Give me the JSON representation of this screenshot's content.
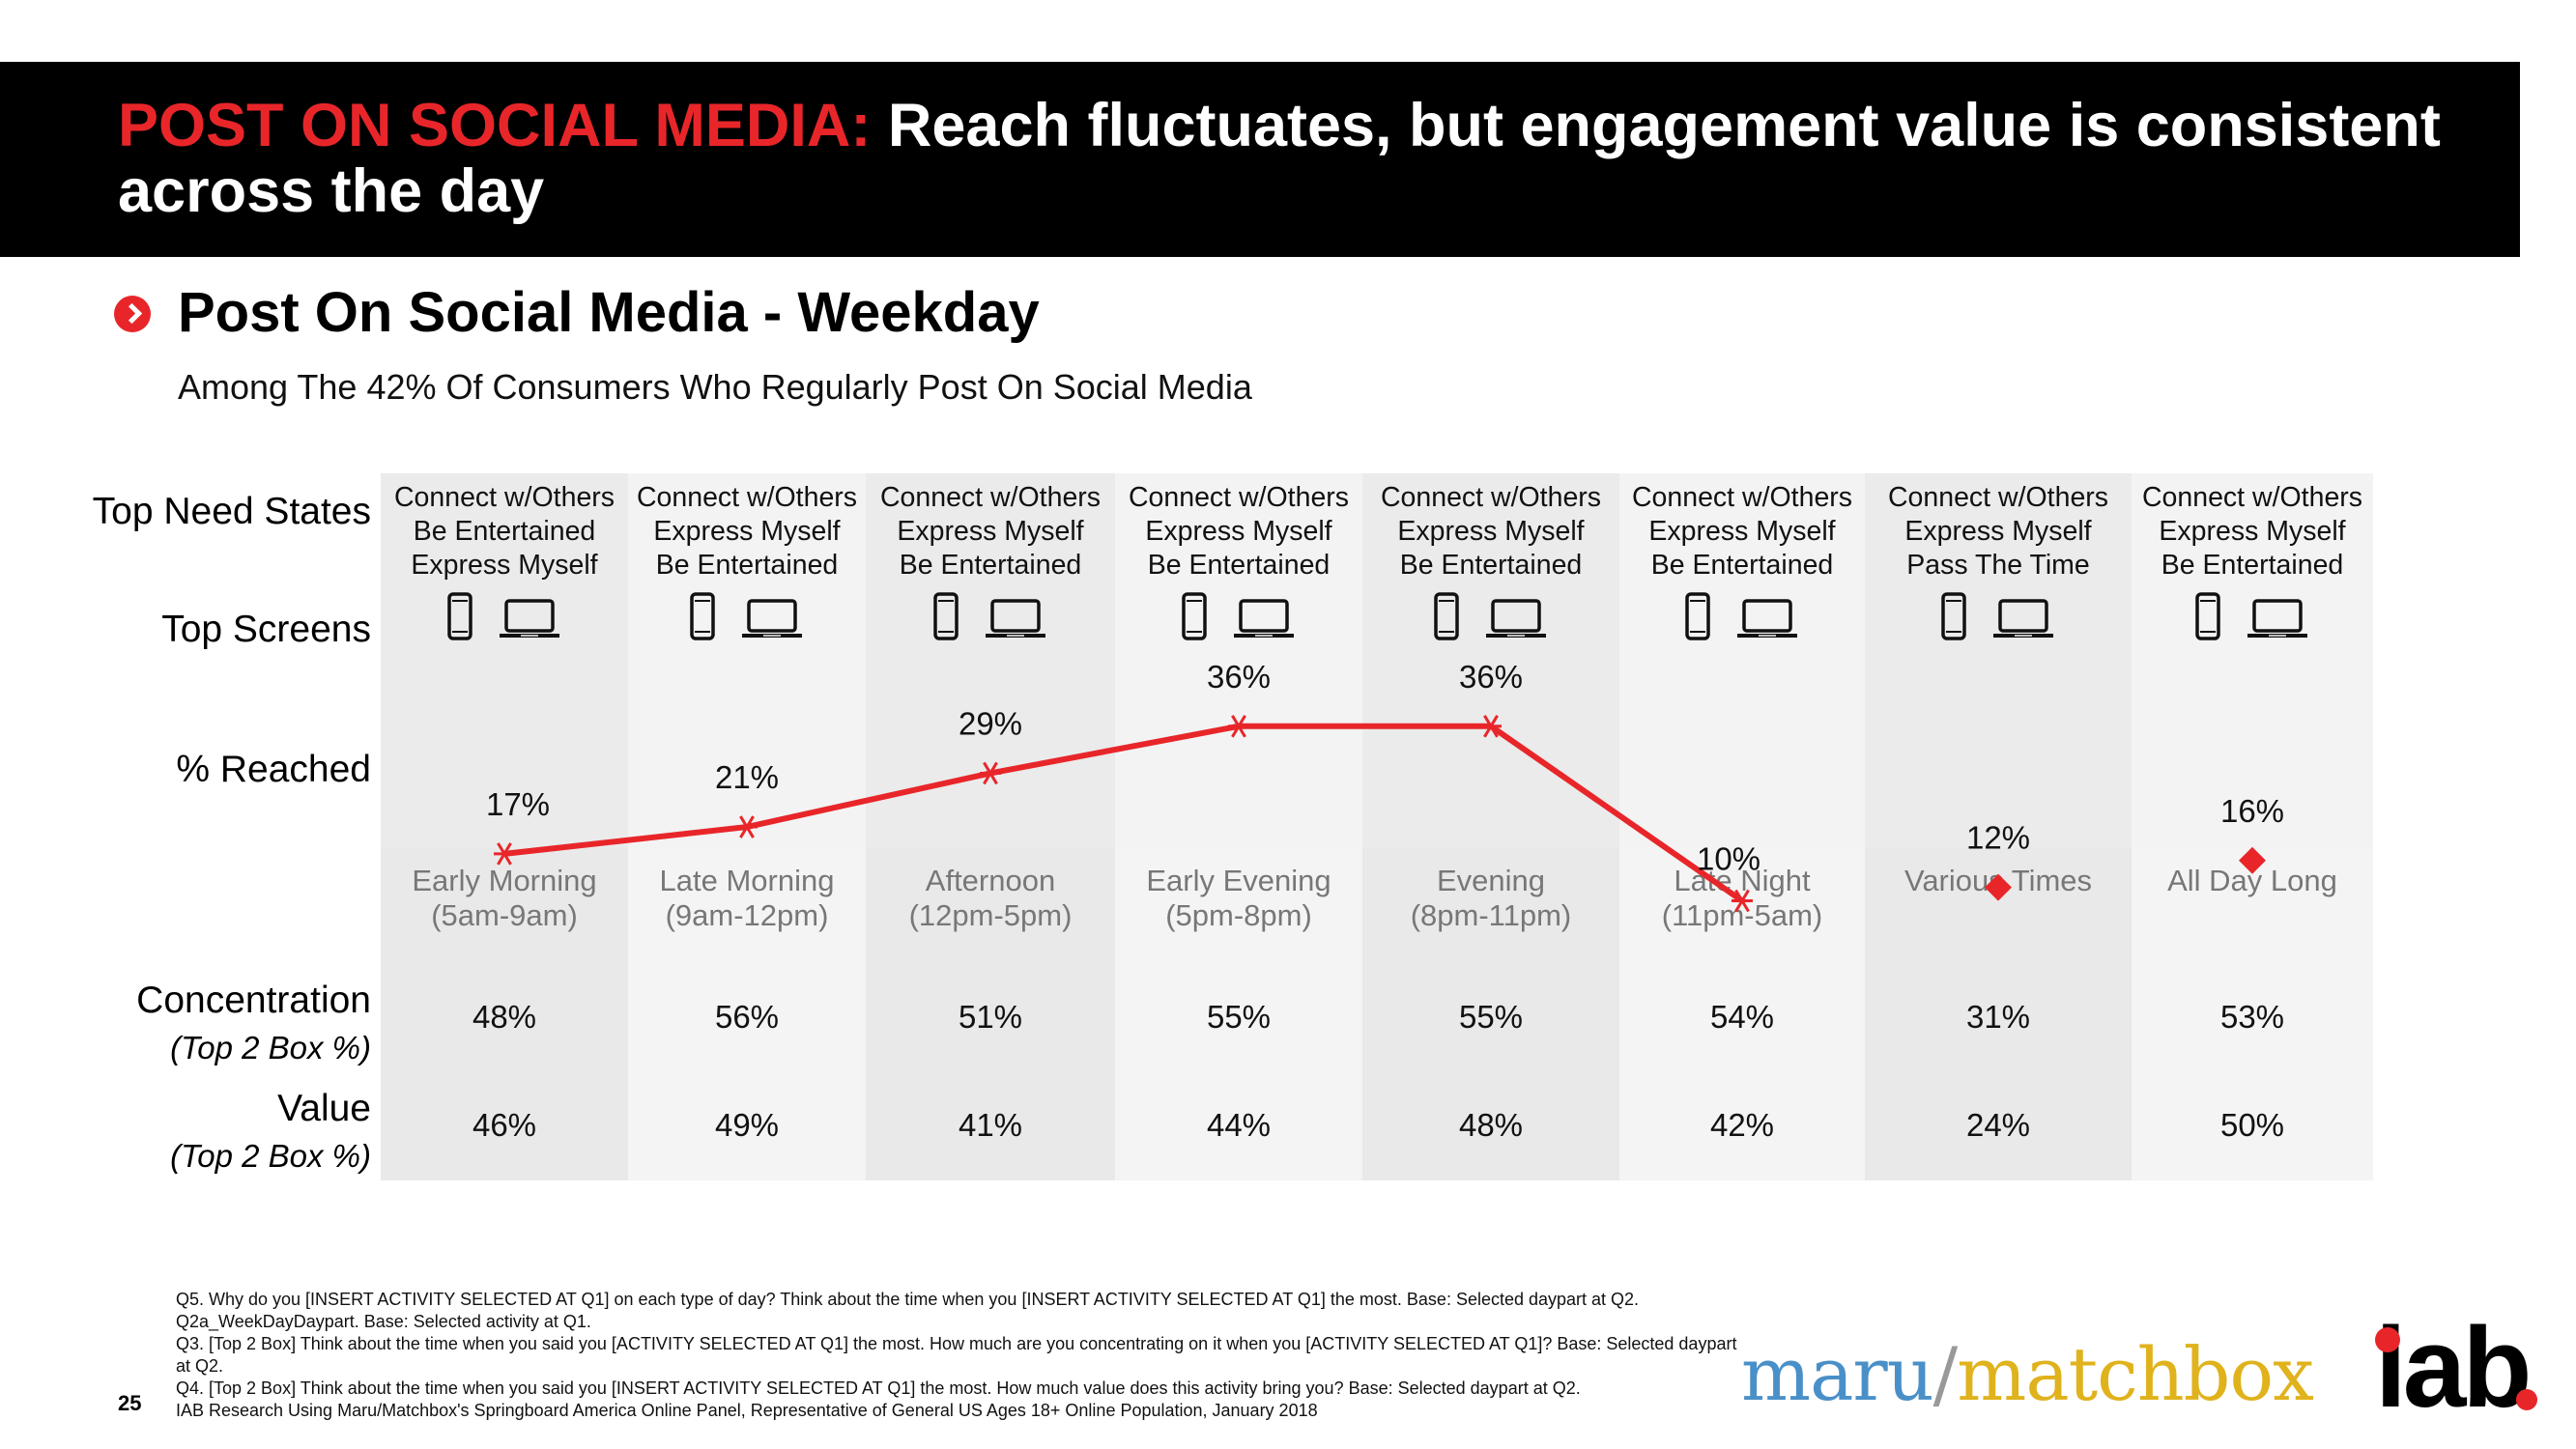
{
  "slide": {
    "title_accent": "POST ON SOCIAL MEDIA:",
    "title_rest": " Reach fluctuates, but engagement value is consistent across the day",
    "section_title": "Post On Social Media - Weekday",
    "subtitle": "Among The 42% Of Consumers Who Regularly Post On Social Media",
    "page_number": "25"
  },
  "row_labels": {
    "need_states": "Top Need States",
    "screens": "Top Screens",
    "reached": "% Reached",
    "concentration": "Concentration",
    "concentration_sub": "(Top 2 Box %)",
    "value": "Value",
    "value_sub": "(Top 2 Box %)"
  },
  "columns": [
    {
      "daypart": "Early Morning",
      "daypart_time": "(5am-9am)",
      "need_states": [
        "Connect w/Others",
        "Be Entertained",
        "Express Myself"
      ],
      "reached_label": "17%",
      "concentration": "48%",
      "value": "46%"
    },
    {
      "daypart": "Late Morning",
      "daypart_time": "(9am-12pm)",
      "need_states": [
        "Connect w/Others",
        "Express Myself",
        "Be Entertained"
      ],
      "reached_label": "21%",
      "concentration": "56%",
      "value": "49%"
    },
    {
      "daypart": "Afternoon",
      "daypart_time": "(12pm-5pm)",
      "need_states": [
        "Connect w/Others",
        "Express Myself",
        "Be Entertained"
      ],
      "reached_label": "29%",
      "concentration": "51%",
      "value": "41%"
    },
    {
      "daypart": "Early Evening",
      "daypart_time": "(5pm-8pm)",
      "need_states": [
        "Connect w/Others",
        "Express Myself",
        "Be Entertained"
      ],
      "reached_label": "36%",
      "concentration": "55%",
      "value": "44%"
    },
    {
      "daypart": "Evening",
      "daypart_time": "(8pm-11pm)",
      "need_states": [
        "Connect w/Others",
        "Express Myself",
        "Be Entertained"
      ],
      "reached_label": "36%",
      "concentration": "55%",
      "value": "48%"
    },
    {
      "daypart": "Late Night",
      "daypart_time": "(11pm-5am)",
      "need_states": [
        "Connect w/Others",
        "Express Myself",
        "Be Entertained"
      ],
      "reached_label": "10%",
      "concentration": "54%",
      "value": "42%"
    },
    {
      "daypart": "Various Times",
      "daypart_time": "",
      "need_states": [
        "Connect w/Others",
        "Express Myself",
        "Pass The Time"
      ],
      "reached_label": "12%",
      "concentration": "31%",
      "value": "24%"
    },
    {
      "daypart": "All Day Long",
      "daypart_time": "",
      "need_states": [
        "Connect w/Others",
        "Express Myself",
        "Be Entertained"
      ],
      "reached_label": "16%",
      "concentration": "53%",
      "value": "50%"
    }
  ],
  "icons": [
    "smartphone-icon",
    "laptop-icon"
  ],
  "chart_data": {
    "type": "line",
    "title": "Post On Social Media - Weekday",
    "categories": [
      "Early Morning",
      "Late Morning",
      "Afternoon",
      "Early Evening",
      "Evening",
      "Late Night",
      "Various Times",
      "All Day Long"
    ],
    "series": [
      {
        "values": [
          17,
          21,
          29,
          36,
          36,
          10,
          null,
          null
        ],
        "marker": "asterisk",
        "color": "#e8262a"
      },
      {
        "values": [
          null,
          null,
          null,
          null,
          null,
          null,
          12,
          16
        ],
        "marker": "diamond",
        "color": "#e8262a"
      }
    ],
    "ylabel": "% Reached",
    "ylim": [
      0,
      40
    ]
  },
  "footnotes": [
    "Q5. Why do you [INSERT ACTIVITY SELECTED AT Q1] on each type of day? Think about the time when you [INSERT ACTIVITY SELECTED AT Q1] the most. Base: Selected daypart at Q2.",
    "Q2a_WeekDayDaypart. Base: Selected activity at Q1.",
    "Q3. [Top 2 Box] Think about the time when you said you [ACTIVITY SELECTED AT Q1] the most.  How much are you concentrating on it when you [ACTIVITY SELECTED AT Q1]? Base: Selected daypart at Q2.",
    "Q4. [Top 2 Box] Think about the time when you said you [INSERT ACTIVITY SELECTED AT Q1] the most.  How much value does this activity bring you? Base: Selected daypart at Q2.",
    "IAB Research Using Maru/Matchbox's Springboard America Online Panel, Representative of General US Ages 18+ Online Population, January 2018"
  ],
  "logos": {
    "maru": "maru",
    "slash": "/",
    "matchbox": "matchbox",
    "iab": "iab"
  }
}
